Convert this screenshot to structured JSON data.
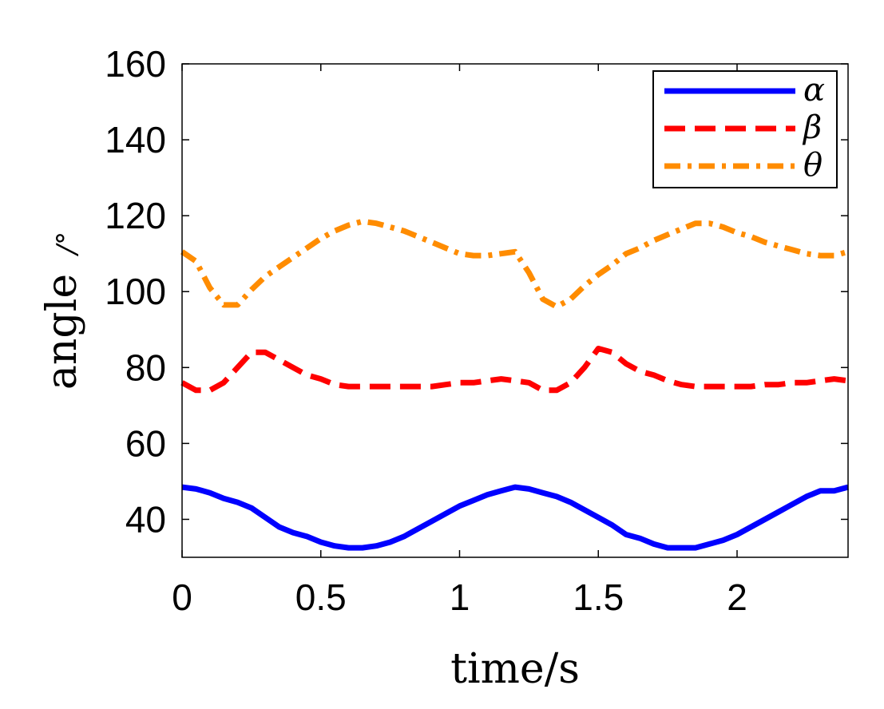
{
  "chart_data": {
    "type": "line",
    "title": "",
    "xlabel": "time/s",
    "ylabel": "angle /°",
    "ylabel_main": "angle",
    "ylabel_unit": "/°",
    "xlim": [
      0,
      2.4
    ],
    "ylim": [
      30,
      160
    ],
    "xticks": [
      0,
      0.5,
      1,
      1.5,
      2
    ],
    "xtick_labels": [
      "0",
      "0.5",
      "1",
      "1.5",
      "2"
    ],
    "yticks": [
      40,
      60,
      80,
      100,
      120,
      140,
      160
    ],
    "ytick_labels": [
      "40",
      "60",
      "80",
      "100",
      "120",
      "140",
      "160"
    ],
    "grid": false,
    "legend_position": "top-right",
    "x": [
      0,
      0.05,
      0.1,
      0.15,
      0.2,
      0.25,
      0.3,
      0.35,
      0.4,
      0.45,
      0.5,
      0.55,
      0.6,
      0.65,
      0.7,
      0.75,
      0.8,
      0.85,
      0.9,
      0.95,
      1.0,
      1.05,
      1.1,
      1.15,
      1.2,
      1.25,
      1.3,
      1.35,
      1.4,
      1.45,
      1.5,
      1.55,
      1.6,
      1.65,
      1.7,
      1.75,
      1.8,
      1.85,
      1.9,
      1.95,
      2.0,
      2.05,
      2.1,
      2.15,
      2.2,
      2.25,
      2.3,
      2.35,
      2.4
    ],
    "series": [
      {
        "name": "α",
        "color": "#0000ff",
        "style": "solid",
        "values": [
          48.5,
          48,
          47,
          45.5,
          44.5,
          43,
          40.5,
          38,
          36.5,
          35.5,
          34,
          33,
          32.5,
          32.5,
          33,
          34,
          35.5,
          37.5,
          39.5,
          41.5,
          43.5,
          45,
          46.5,
          47.5,
          48.5,
          48,
          47,
          46,
          44.5,
          42.5,
          40.5,
          38.5,
          36,
          35,
          33.5,
          32.5,
          32.5,
          32.5,
          33.5,
          34.5,
          36,
          38,
          40,
          42,
          44,
          46,
          47.5,
          47.5,
          48.5
        ]
      },
      {
        "name": "β",
        "color": "#ff0000",
        "style": "dashed",
        "values": [
          76,
          74,
          74,
          76,
          80,
          84,
          84,
          82,
          80,
          78,
          77,
          75.5,
          75,
          75,
          75,
          75,
          75,
          75,
          75,
          75.5,
          76,
          76,
          76.5,
          77,
          76.5,
          76,
          74,
          74,
          76,
          80,
          85,
          84,
          81,
          79,
          78,
          76.5,
          75.5,
          75,
          75,
          75,
          75,
          75,
          75.5,
          75.5,
          76,
          76,
          76.5,
          77,
          76.5
        ]
      },
      {
        "name": "θ",
        "color": "#ff8c00",
        "style": "dashdot",
        "values": [
          110.5,
          108,
          101,
          96.5,
          96.5,
          100.5,
          104,
          106.5,
          109,
          111.5,
          114,
          116,
          117.5,
          118.5,
          118,
          117,
          116,
          114.5,
          113,
          111.5,
          110,
          109.5,
          109.5,
          110,
          110.5,
          105,
          98,
          96,
          98,
          101.5,
          104.5,
          107,
          110,
          111.5,
          113.5,
          115,
          116.5,
          118,
          118,
          117,
          115.5,
          114.5,
          113,
          112,
          111,
          110,
          109.5,
          109.5,
          110.5
        ]
      }
    ]
  }
}
